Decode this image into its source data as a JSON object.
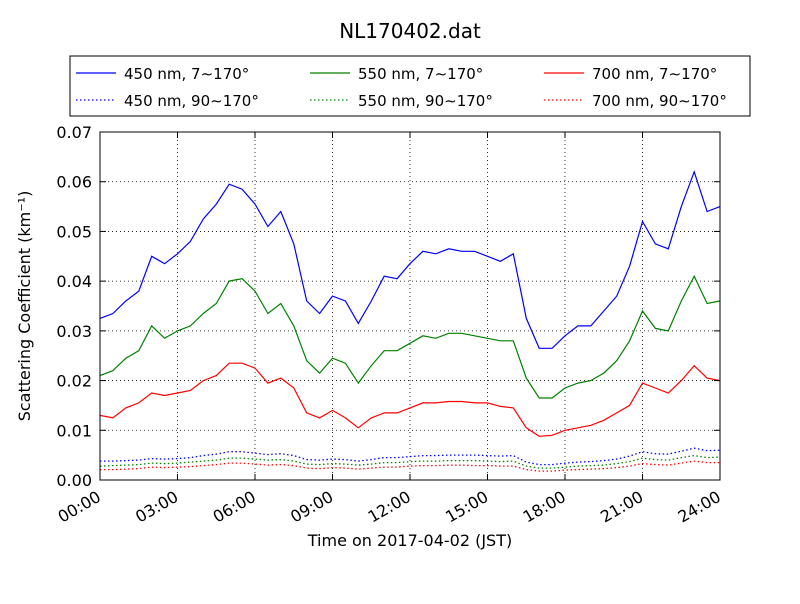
{
  "chart_data": {
    "type": "line",
    "title": "NL170402.dat",
    "xlabel": "Time on 2017-04-02 (JST)",
    "ylabel": "Scattering Coefficient (km⁻¹)",
    "xlim": [
      0,
      24
    ],
    "ylim": [
      0,
      0.07
    ],
    "x_ticks": [
      "00:00",
      "03:00",
      "06:00",
      "09:00",
      "12:00",
      "15:00",
      "18:00",
      "21:00",
      "24:00"
    ],
    "y_ticks": [
      "0.00",
      "0.01",
      "0.02",
      "0.03",
      "0.04",
      "0.05",
      "0.06",
      "0.07"
    ],
    "grid": true,
    "legend_position": "top",
    "x": [
      0,
      0.5,
      1,
      1.5,
      2,
      2.5,
      3,
      3.5,
      4,
      4.5,
      5,
      5.5,
      6,
      6.5,
      7,
      7.5,
      8,
      8.5,
      9,
      9.5,
      10,
      10.5,
      11,
      11.5,
      12,
      12.5,
      13,
      13.5,
      14,
      14.5,
      15,
      15.5,
      16,
      16.5,
      17,
      17.5,
      18,
      18.5,
      19,
      19.5,
      20,
      20.5,
      21,
      21.5,
      22,
      22.5,
      23,
      23.5,
      24
    ],
    "series": [
      {
        "name": "450 nm, 7∼170°",
        "color": "#0000ff",
        "style": "solid",
        "values": [
          0.0325,
          0.0335,
          0.036,
          0.038,
          0.045,
          0.0435,
          0.0455,
          0.048,
          0.0525,
          0.0555,
          0.0595,
          0.0585,
          0.0555,
          0.051,
          0.054,
          0.0475,
          0.036,
          0.0335,
          0.037,
          0.036,
          0.0315,
          0.036,
          0.041,
          0.0405,
          0.0435,
          0.046,
          0.0455,
          0.0465,
          0.046,
          0.046,
          0.045,
          0.044,
          0.0455,
          0.0325,
          0.0265,
          0.0265,
          0.029,
          0.031,
          0.031,
          0.034,
          0.037,
          0.043,
          0.052,
          0.0475,
          0.0465,
          0.055,
          0.062,
          0.054,
          0.055
        ]
      },
      {
        "name": "450 nm, 90∼170°",
        "color": "#0000ff",
        "style": "dotted",
        "values": [
          0.0038,
          0.0038,
          0.0039,
          0.004,
          0.0043,
          0.0042,
          0.0043,
          0.0045,
          0.0049,
          0.0052,
          0.0057,
          0.0057,
          0.0054,
          0.0051,
          0.0053,
          0.0049,
          0.0041,
          0.004,
          0.0042,
          0.0041,
          0.0038,
          0.0041,
          0.0045,
          0.0045,
          0.0047,
          0.0049,
          0.0049,
          0.005,
          0.005,
          0.005,
          0.0049,
          0.0048,
          0.0049,
          0.0036,
          0.0031,
          0.0031,
          0.0034,
          0.0036,
          0.0037,
          0.0039,
          0.0042,
          0.0048,
          0.0057,
          0.0053,
          0.0052,
          0.0058,
          0.0064,
          0.0059,
          0.006
        ]
      },
      {
        "name": "550 nm, 7∼170°",
        "color": "#008000",
        "style": "solid",
        "values": [
          0.021,
          0.022,
          0.0245,
          0.026,
          0.031,
          0.0285,
          0.03,
          0.031,
          0.0335,
          0.0355,
          0.04,
          0.0405,
          0.038,
          0.0335,
          0.0355,
          0.031,
          0.024,
          0.0215,
          0.0245,
          0.0235,
          0.0195,
          0.023,
          0.026,
          0.026,
          0.0275,
          0.029,
          0.0285,
          0.0295,
          0.0295,
          0.029,
          0.0285,
          0.028,
          0.028,
          0.0205,
          0.0165,
          0.0165,
          0.0185,
          0.0195,
          0.02,
          0.0215,
          0.024,
          0.028,
          0.034,
          0.0305,
          0.03,
          0.036,
          0.041,
          0.0355,
          0.036
        ]
      },
      {
        "name": "550 nm, 90∼170°",
        "color": "#008000",
        "style": "dotted",
        "values": [
          0.0028,
          0.0029,
          0.003,
          0.0031,
          0.0034,
          0.0033,
          0.0034,
          0.0036,
          0.0038,
          0.004,
          0.0044,
          0.0044,
          0.0042,
          0.004,
          0.0041,
          0.0038,
          0.0032,
          0.0031,
          0.0033,
          0.0032,
          0.003,
          0.0032,
          0.0035,
          0.0035,
          0.0037,
          0.0038,
          0.0038,
          0.0039,
          0.0039,
          0.0039,
          0.0038,
          0.0037,
          0.0038,
          0.0028,
          0.0024,
          0.0024,
          0.0026,
          0.0028,
          0.0029,
          0.003,
          0.0033,
          0.0037,
          0.0044,
          0.0041,
          0.004,
          0.0045,
          0.0049,
          0.0045,
          0.0046
        ]
      },
      {
        "name": "700 nm, 7∼170°",
        "color": "#ff0000",
        "style": "solid",
        "values": [
          0.013,
          0.0125,
          0.0145,
          0.0155,
          0.0175,
          0.017,
          0.0175,
          0.018,
          0.02,
          0.021,
          0.0235,
          0.0235,
          0.0225,
          0.0195,
          0.0205,
          0.0185,
          0.0135,
          0.0125,
          0.014,
          0.0125,
          0.0105,
          0.0125,
          0.0135,
          0.0135,
          0.0145,
          0.0155,
          0.0155,
          0.0158,
          0.0158,
          0.0155,
          0.0155,
          0.0148,
          0.0145,
          0.0105,
          0.0088,
          0.009,
          0.01,
          0.0105,
          0.011,
          0.012,
          0.0135,
          0.015,
          0.0195,
          0.0185,
          0.0175,
          0.02,
          0.023,
          0.0205,
          0.02
        ]
      },
      {
        "name": "700 nm, 90∼170°",
        "color": "#ff0000",
        "style": "dotted",
        "values": [
          0.0021,
          0.0021,
          0.0022,
          0.0023,
          0.0026,
          0.0025,
          0.0026,
          0.0027,
          0.0029,
          0.0031,
          0.0034,
          0.0034,
          0.0032,
          0.003,
          0.0031,
          0.0029,
          0.0024,
          0.0023,
          0.0025,
          0.0024,
          0.0022,
          0.0024,
          0.0026,
          0.0026,
          0.0028,
          0.0029,
          0.0029,
          0.003,
          0.003,
          0.0029,
          0.0029,
          0.0028,
          0.0028,
          0.0021,
          0.0018,
          0.0018,
          0.002,
          0.0021,
          0.0022,
          0.0023,
          0.0025,
          0.0028,
          0.0033,
          0.0031,
          0.003,
          0.0034,
          0.0038,
          0.0035,
          0.0035
        ]
      }
    ]
  }
}
